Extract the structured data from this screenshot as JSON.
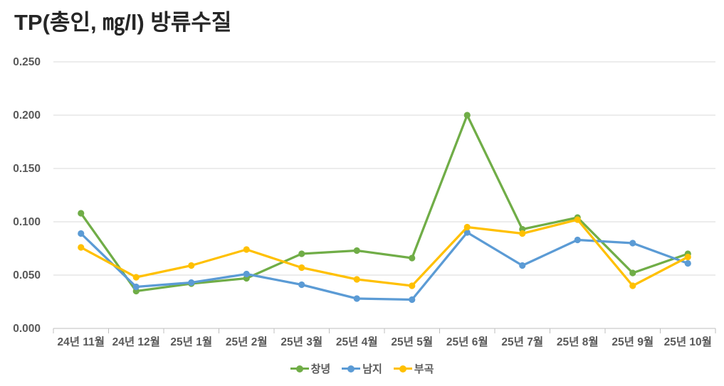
{
  "chart": {
    "title": "TP(총인, ㎎/l) 방류수질"
  },
  "chart_data": {
    "type": "line",
    "title": "TP(총인, ㎎/l) 방류수질",
    "categories": [
      "24년 11월",
      "24년 12월",
      "25년 1월",
      "25년 2월",
      "25년 3월",
      "25년 4월",
      "25년 5월",
      "25년 6월",
      "25년 7월",
      "25년 8월",
      "25년 9월",
      "25년 10월"
    ],
    "series": [
      {
        "name": "창녕",
        "color": "#70AD47",
        "values": [
          0.108,
          0.035,
          0.042,
          0.047,
          0.07,
          0.073,
          0.066,
          0.2,
          0.093,
          0.104,
          0.052,
          0.07
        ]
      },
      {
        "name": "남지",
        "color": "#5B9BD5",
        "values": [
          0.089,
          0.039,
          0.043,
          0.051,
          0.041,
          0.028,
          0.027,
          0.09,
          0.059,
          0.083,
          0.08,
          0.061
        ]
      },
      {
        "name": "부곡",
        "color": "#FFC000",
        "values": [
          0.076,
          0.048,
          0.059,
          0.074,
          0.057,
          0.046,
          0.04,
          0.095,
          0.089,
          0.102,
          0.04,
          0.067
        ]
      }
    ],
    "xlabel": "",
    "ylabel": "",
    "ylim": [
      0,
      0.25
    ],
    "ytick_step": 0.05,
    "ytick_labels": [
      "0.000",
      "0.050",
      "0.100",
      "0.150",
      "0.200",
      "0.250"
    ],
    "grid": "horizontal",
    "legend_position": "bottom",
    "marker": "circle",
    "colors": {
      "gridline": "#D9D9D9",
      "axis_line": "#BFBFBF",
      "axis_label": "#595959",
      "title": "#262626"
    }
  }
}
